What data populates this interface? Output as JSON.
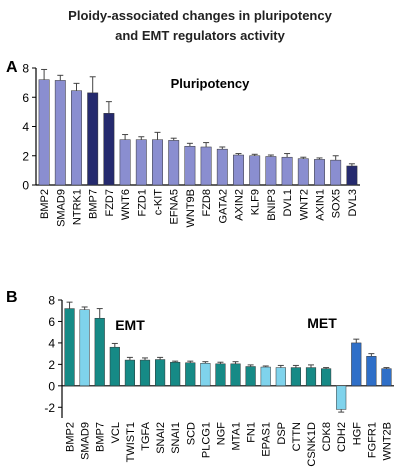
{
  "title": {
    "line1": "Ploidy-associated changes in pluripotency",
    "line2": "and EMT regulators activity"
  },
  "colors": {
    "bar_light_purple": "#8a8ed0",
    "bar_dark_navy": "#252a6e",
    "bar_teal": "#168a86",
    "bar_light_cyan": "#7fd3ec",
    "bar_blue": "#2f6fc8",
    "axis": "#000000",
    "error_bar": "#444444"
  },
  "chart_data": [
    {
      "type": "bar",
      "panel_label": "A",
      "annotation": "Pluripotency",
      "ylim": [
        0,
        8
      ],
      "yticks": [
        "0",
        "2",
        "4",
        "6",
        "8"
      ],
      "grid": false,
      "categories": [
        "BMP2",
        "SMAD9",
        "NTRK1",
        "BMP7",
        "FZD7",
        "WNT6",
        "FZD1",
        "c-KIT",
        "EFNA5",
        "WNT9B",
        "FZD8",
        "GATA2",
        "AXIN2",
        "KLF9",
        "BNIP3",
        "DVL1",
        "WNT2",
        "AXIN1",
        "SOX5",
        "DVL3"
      ],
      "values": [
        7.2,
        7.15,
        6.45,
        6.3,
        4.9,
        3.1,
        3.1,
        3.1,
        3.05,
        2.65,
        2.6,
        2.45,
        2.05,
        2.0,
        1.95,
        1.9,
        1.8,
        1.75,
        1.7,
        1.3
      ],
      "errors": [
        0.7,
        0.35,
        0.5,
        1.1,
        0.8,
        0.35,
        0.2,
        0.5,
        0.15,
        0.2,
        0.3,
        0.15,
        0.1,
        0.1,
        0.1,
        0.25,
        0.1,
        0.1,
        0.3,
        0.15
      ],
      "bar_colors": [
        "bar_light_purple",
        "bar_light_purple",
        "bar_light_purple",
        "bar_dark_navy",
        "bar_dark_navy",
        "bar_light_purple",
        "bar_light_purple",
        "bar_light_purple",
        "bar_light_purple",
        "bar_light_purple",
        "bar_light_purple",
        "bar_light_purple",
        "bar_light_purple",
        "bar_light_purple",
        "bar_light_purple",
        "bar_light_purple",
        "bar_light_purple",
        "bar_light_purple",
        "bar_light_purple",
        "bar_dark_navy"
      ]
    },
    {
      "type": "bar",
      "panel_label": "B",
      "annotations": [
        "EMT",
        "MET"
      ],
      "ylim": [
        -3,
        8
      ],
      "yticks": [
        "-2",
        "0",
        "2",
        "4",
        "6",
        "8"
      ],
      "grid": false,
      "categories": [
        "BMP2",
        "SMAD9",
        "BMP7",
        "VCL",
        "TWIST1",
        "TGFA",
        "SNAI2",
        "SNAI1",
        "SCD",
        "PLCG1",
        "NGF",
        "MTA1",
        "FN1",
        "EPAS1",
        "DSP",
        "CTTN",
        "CSNK1D",
        "CDK8",
        "CDH2",
        "HGF",
        "FGFR1",
        "WNT2B"
      ],
      "values": [
        7.2,
        7.1,
        6.3,
        3.6,
        2.4,
        2.4,
        2.45,
        2.2,
        2.15,
        2.1,
        2.05,
        2.05,
        1.8,
        1.75,
        1.7,
        1.7,
        1.7,
        1.6,
        -2.2,
        4.0,
        2.75,
        1.6
      ],
      "errors": [
        0.6,
        0.25,
        0.9,
        0.35,
        0.25,
        0.2,
        0.2,
        0.1,
        0.15,
        0.15,
        0.15,
        0.2,
        0.15,
        0.1,
        0.2,
        0.2,
        0.25,
        0.1,
        0.25,
        0.35,
        0.25,
        0.1
      ],
      "bar_colors": [
        "bar_teal",
        "bar_light_cyan",
        "bar_teal",
        "bar_teal",
        "bar_teal",
        "bar_teal",
        "bar_teal",
        "bar_teal",
        "bar_teal",
        "bar_light_cyan",
        "bar_teal",
        "bar_teal",
        "bar_teal",
        "bar_light_cyan",
        "bar_light_cyan",
        "bar_teal",
        "bar_teal",
        "bar_teal",
        "bar_light_cyan",
        "bar_blue",
        "bar_blue",
        "bar_blue"
      ]
    }
  ]
}
